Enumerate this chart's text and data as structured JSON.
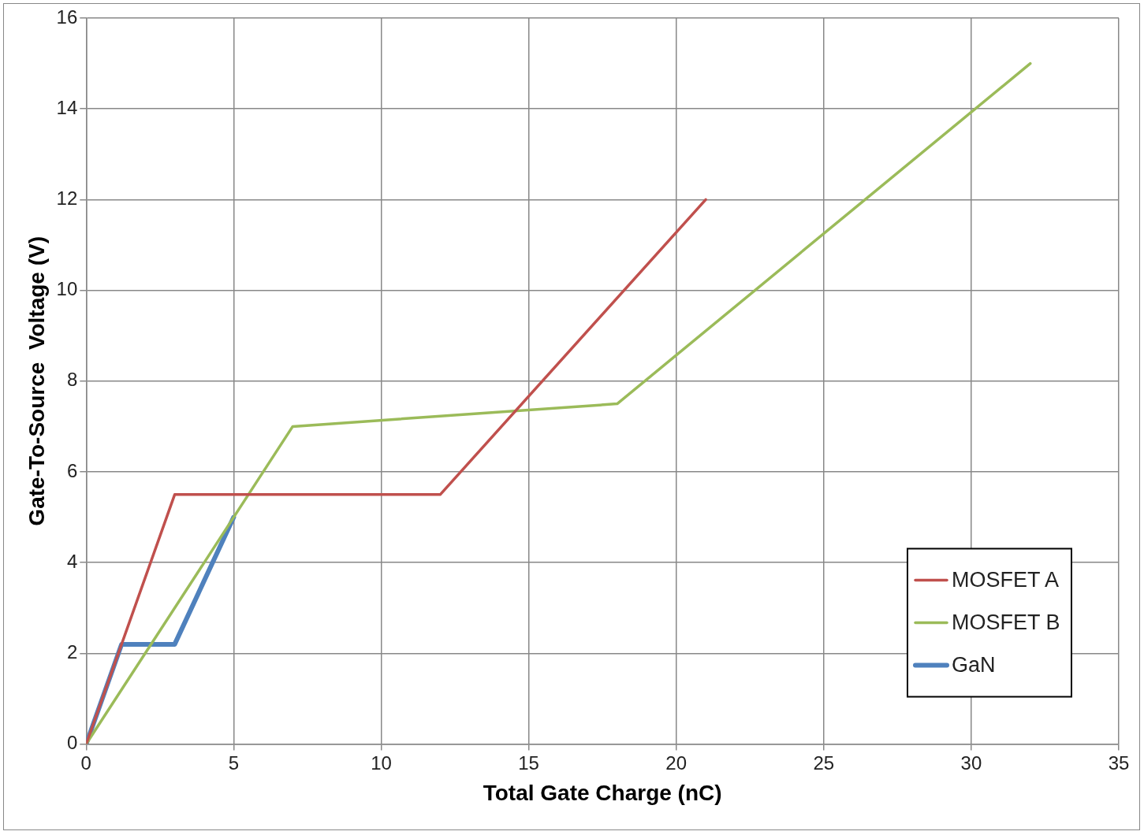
{
  "chart_data": {
    "type": "line",
    "xlabel": "Total Gate Charge (nC)",
    "ylabel": "Gate-To-Source  Voltage (V)",
    "xlim": [
      0,
      35
    ],
    "xticks": [
      0,
      5,
      10,
      15,
      20,
      25,
      30,
      35
    ],
    "ylim": [
      0,
      16
    ],
    "yticks": [
      0,
      2,
      4,
      6,
      8,
      10,
      12,
      14,
      16
    ],
    "grid": true,
    "legend": "bottom right",
    "marker": "none",
    "line_style": "solid",
    "series": [
      {
        "name": "MOSFET A",
        "color": "#c0504d",
        "x": [
          0,
          3,
          12,
          21
        ],
        "values": [
          0,
          5.5,
          5.5,
          12
        ]
      },
      {
        "name": "MOSFET B",
        "color": "#9bbb59",
        "x": [
          0,
          7,
          18,
          32
        ],
        "values": [
          0,
          7,
          7.5,
          15
        ]
      },
      {
        "name": "GaN",
        "color": "#4f81bd",
        "x": [
          0,
          1.2,
          3,
          5
        ],
        "values": [
          0,
          2.2,
          2.2,
          5
        ]
      }
    ]
  }
}
